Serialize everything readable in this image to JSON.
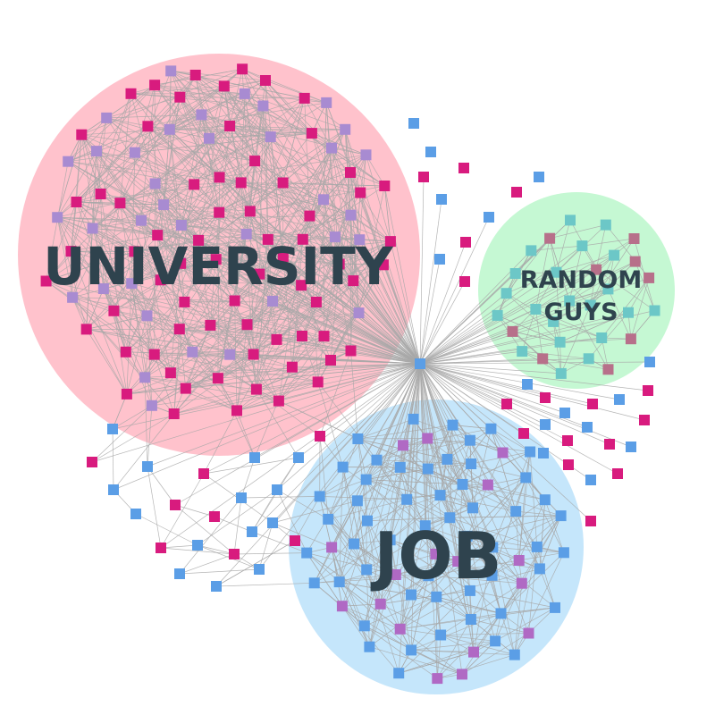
{
  "groups": [
    {
      "id": "university",
      "label": "UNIVERSITY",
      "color": "#ffc2cc"
    },
    {
      "id": "random",
      "label": [
        "RANDOM",
        "GUYS"
      ],
      "color": "#c5f8d3"
    },
    {
      "id": "job",
      "label": "JOB",
      "color": "#c5e6fb"
    }
  ],
  "node_colors": {
    "blue": "#5b9ee6",
    "magenta": "#d81b7e",
    "purple": "#a88bd1",
    "teal": "#6cc7c7",
    "mauve": "#b7708a",
    "violet": "#b069c4"
  },
  "edge_color": "#a8a8a8"
}
